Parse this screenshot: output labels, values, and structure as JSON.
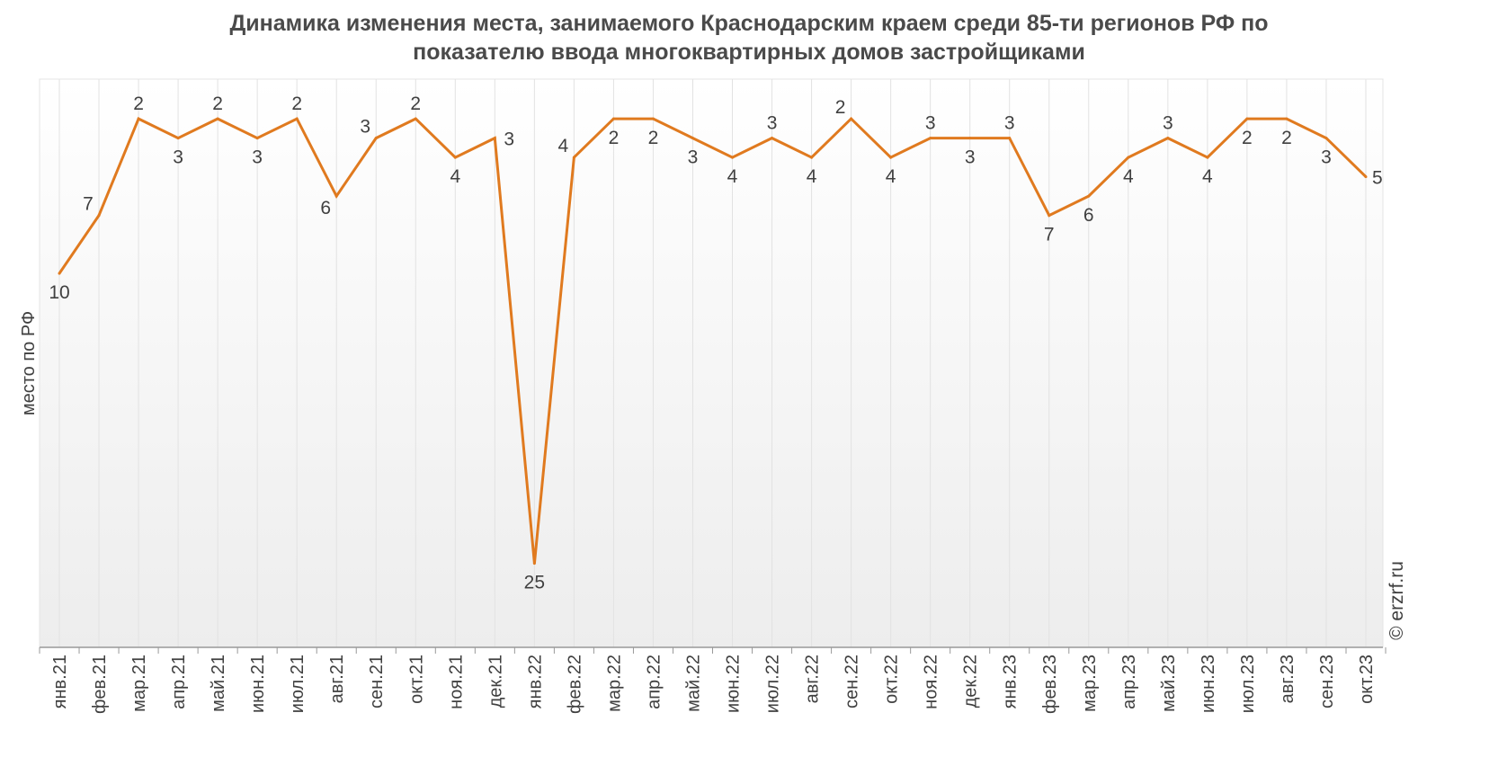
{
  "chart_data": {
    "type": "line",
    "title_lines": [
      "Динамика изменения места, занимаемого Краснодарским краем среди 85-ти регионов РФ по",
      "показателю ввода многоквартирных домов застройщиками"
    ],
    "ylabel": "место по РФ",
    "xlabel": "",
    "y_reversed": true,
    "ylim": [
      1,
      30
    ],
    "grid": "vertical",
    "legend": "none",
    "categories": [
      "янв.21",
      "фев.21",
      "мар.21",
      "апр.21",
      "май.21",
      "июн.21",
      "июл.21",
      "авг.21",
      "сен.21",
      "окт.21",
      "ноя.21",
      "дек.21",
      "янв.22",
      "фев.22",
      "мар.22",
      "апр.22",
      "май.22",
      "июн.22",
      "июл.22",
      "авг.22",
      "сен.22",
      "окт.22",
      "ноя.22",
      "дек.22",
      "янв.23",
      "фев.23",
      "мар.23",
      "апр.23",
      "май.23",
      "июн.23",
      "июл.23",
      "авг.23",
      "сен.23",
      "окт.23"
    ],
    "series": [
      {
        "values": [
          10,
          7,
          2,
          3,
          2,
          3,
          2,
          6,
          3,
          2,
          4,
          3,
          25,
          4,
          2,
          2,
          3,
          4,
          3,
          4,
          2,
          4,
          3,
          3,
          3,
          7,
          6,
          4,
          3,
          4,
          2,
          2,
          3,
          5
        ],
        "color": "#E07A1F"
      }
    ]
  },
  "watermark": "© erzrf.ru"
}
